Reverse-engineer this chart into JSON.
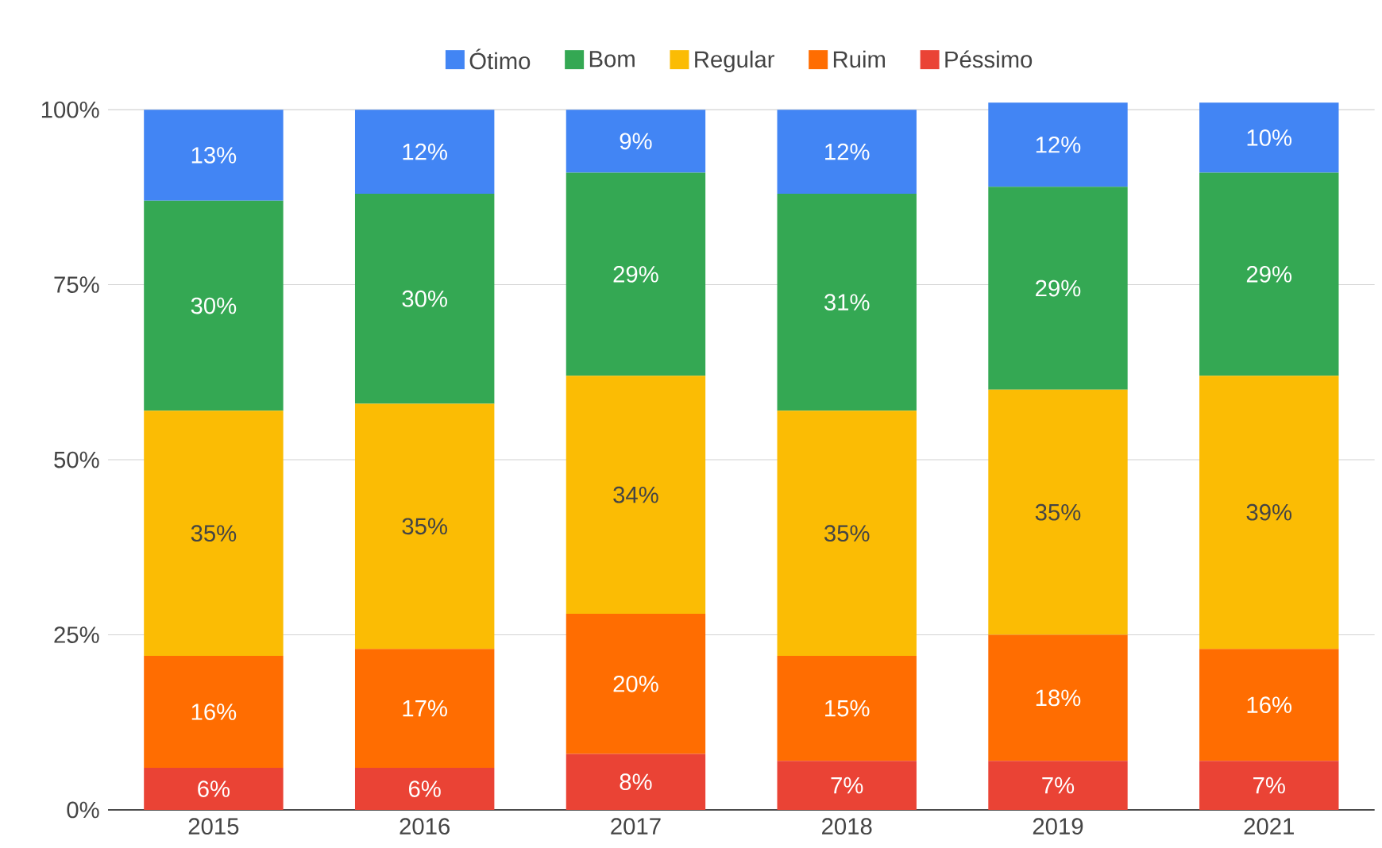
{
  "chart_data": {
    "type": "bar",
    "stacked": true,
    "categories": [
      "2015",
      "2016",
      "2017",
      "2018",
      "2019",
      "2021"
    ],
    "series": [
      {
        "name": "Péssimo",
        "color": "#ea4335",
        "values": [
          6,
          6,
          8,
          7,
          7,
          7
        ],
        "value_labels": [
          "6%",
          "6%",
          "8%",
          "7%",
          "7%",
          "7%"
        ]
      },
      {
        "name": "Ruim",
        "color": "#ff6d01",
        "values": [
          16,
          17,
          20,
          15,
          18,
          16
        ],
        "value_labels": [
          "16%",
          "17%",
          "20%",
          "15%",
          "18%",
          "16%"
        ]
      },
      {
        "name": "Regular",
        "color": "#fbbc04",
        "values": [
          35,
          35,
          34,
          35,
          35,
          39
        ],
        "value_labels": [
          "35%",
          "35%",
          "34%",
          "35%",
          "35%",
          "39%"
        ]
      },
      {
        "name": "Bom",
        "color": "#34a853",
        "values": [
          30,
          30,
          29,
          31,
          29,
          29
        ],
        "value_labels": [
          "30%",
          "30%",
          "29%",
          "31%",
          "29%",
          "29%"
        ]
      },
      {
        "name": "Ótimo",
        "color": "#4285f4",
        "values": [
          13,
          12,
          9,
          12,
          12,
          10
        ],
        "value_labels": [
          "13%",
          "12%",
          "9%",
          "12%",
          "12%",
          "10%"
        ]
      }
    ],
    "ylim": [
      0,
      101
    ],
    "yticks": [
      {
        "value": 0,
        "label": "0%"
      },
      {
        "value": 25,
        "label": "25%"
      },
      {
        "value": 50,
        "label": "50%"
      },
      {
        "value": 75,
        "label": "75%"
      },
      {
        "value": 100,
        "label": "100%"
      }
    ],
    "grid": "y",
    "legend": "top"
  }
}
